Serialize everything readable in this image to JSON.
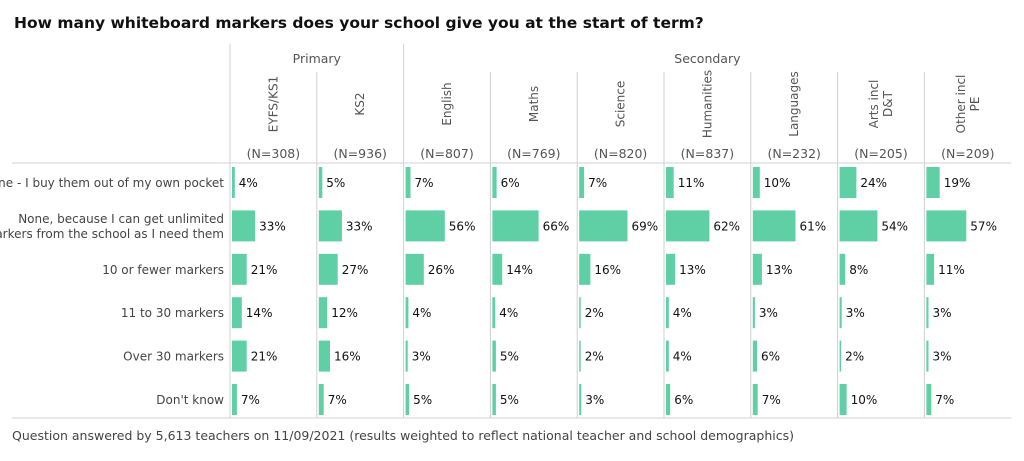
{
  "title": "How many whiteboard markers does your school give you at the start of term?",
  "footer": "Question answered by 5,613 teachers on 11/09/2021 (results weighted to reflect national teacher and school demographics)",
  "colors": {
    "bar": "#5fcfa6",
    "grid": "#d0d0d0",
    "text": "#222222",
    "muted": "#555555"
  },
  "chart_data": {
    "type": "bar",
    "orientation": "horizontal",
    "title": "How many whiteboard markers does your school give you at the start of term?",
    "xlim": [
      0,
      100
    ],
    "unit": "%",
    "groups": [
      {
        "name": "Primary",
        "columns": [
          0,
          1
        ]
      },
      {
        "name": "Secondary",
        "columns": [
          2,
          3,
          4,
          5,
          6,
          7,
          8
        ]
      }
    ],
    "columns": [
      {
        "label": [
          "EYFS/KS1"
        ],
        "n": "(N=308)"
      },
      {
        "label": [
          "KS2"
        ],
        "n": "(N=936)"
      },
      {
        "label": [
          "English"
        ],
        "n": "(N=807)"
      },
      {
        "label": [
          "Maths"
        ],
        "n": "(N=769)"
      },
      {
        "label": [
          "Science"
        ],
        "n": "(N=820)"
      },
      {
        "label": [
          "Humanities"
        ],
        "n": "(N=837)"
      },
      {
        "label": [
          "Languages"
        ],
        "n": "(N=232)"
      },
      {
        "label": [
          "Arts incl",
          "D&T"
        ],
        "n": "(N=205)"
      },
      {
        "label": [
          "Other incl",
          "PE"
        ],
        "n": "(N=209)"
      }
    ],
    "categories": [
      [
        "None - I buy them out of my own pocket"
      ],
      [
        "None, because I can get unlimited",
        "markers from the school as I need them"
      ],
      [
        "10 or fewer markers"
      ],
      [
        "11 to 30 markers"
      ],
      [
        "Over 30 markers"
      ],
      [
        "Don't know"
      ]
    ],
    "values": [
      [
        4,
        5,
        7,
        6,
        7,
        11,
        10,
        24,
        19
      ],
      [
        33,
        33,
        56,
        66,
        69,
        62,
        61,
        54,
        57
      ],
      [
        21,
        27,
        26,
        14,
        16,
        13,
        13,
        8,
        11
      ],
      [
        14,
        12,
        4,
        4,
        2,
        4,
        3,
        3,
        3
      ],
      [
        21,
        16,
        3,
        5,
        2,
        4,
        6,
        2,
        3
      ],
      [
        7,
        7,
        5,
        5,
        3,
        6,
        7,
        10,
        7
      ]
    ]
  }
}
